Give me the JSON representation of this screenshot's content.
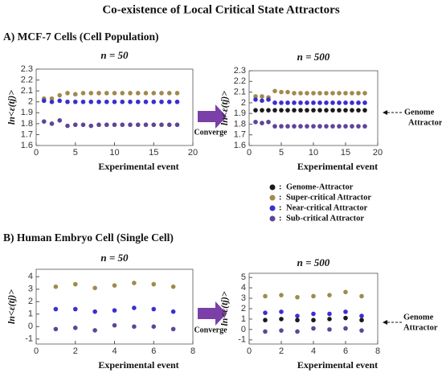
{
  "title": "Co-existence of Local Critical State Attractors",
  "sections": [
    {
      "heading": "A) MCF-7 Cells (Cell Population)",
      "arrow_label": "Converge",
      "annotation": [
        "Genome",
        "Attractor"
      ]
    },
    {
      "heading": "B) Human Embryo Cell (Single Cell)",
      "arrow_label": "Converge",
      "annotation": [
        "Genome",
        "Attractor"
      ]
    }
  ],
  "legend_separator": ":",
  "legend": [
    {
      "name": "Genome-Attractor",
      "color": "#1a1a1a"
    },
    {
      "name": "Super-critical Attractor",
      "color": "#a08a4c"
    },
    {
      "name": "Near-critical Attractor",
      "color": "#3a2fd0"
    },
    {
      "name": "Sub-critical Attractor",
      "color": "#5e4596"
    }
  ],
  "chart_data": [
    {
      "type": "scatter",
      "title": "n = 50",
      "xlabel": "Experimental event",
      "ylabel": "ln<ε(tj)>",
      "x": [
        1,
        2,
        3,
        4,
        5,
        6,
        7,
        8,
        9,
        10,
        11,
        12,
        13,
        14,
        15,
        16,
        17,
        18
      ],
      "xlim": [
        0,
        20
      ],
      "xticks": [
        0,
        5,
        10,
        15,
        20
      ],
      "ylim": [
        1.6,
        2.3
      ],
      "yticks": [
        1.6,
        1.7,
        1.8,
        1.9,
        2.0,
        2.1,
        2.2,
        2.3
      ],
      "series": [
        {
          "name": "Super-critical Attractor",
          "color": "#a08a4c",
          "values": [
            2.03,
            2.03,
            2.06,
            2.08,
            2.07,
            2.08,
            2.08,
            2.08,
            2.08,
            2.08,
            2.08,
            2.08,
            2.08,
            2.08,
            2.08,
            2.08,
            2.08,
            2.08
          ]
        },
        {
          "name": "Near-critical Attractor",
          "color": "#3a2fd0",
          "values": [
            2.01,
            2.0,
            2.01,
            2.0,
            2.0,
            2.0,
            2.0,
            2.0,
            2.0,
            2.0,
            2.0,
            2.0,
            2.0,
            2.0,
            2.0,
            2.0,
            2.0,
            2.0
          ]
        },
        {
          "name": "Sub-critical Attractor",
          "color": "#5e4596",
          "values": [
            1.82,
            1.8,
            1.83,
            1.78,
            1.79,
            1.79,
            1.78,
            1.79,
            1.79,
            1.79,
            1.79,
            1.79,
            1.79,
            1.79,
            1.79,
            1.79,
            1.79,
            1.79
          ]
        }
      ]
    },
    {
      "type": "scatter",
      "title": "n = 500",
      "xlabel": "Experimental event",
      "ylabel": "ln<ε(tj)>",
      "x": [
        1,
        2,
        3,
        4,
        5,
        6,
        7,
        8,
        9,
        10,
        11,
        12,
        13,
        14,
        15,
        16,
        17,
        18
      ],
      "xlim": [
        0,
        20
      ],
      "xticks": [
        0,
        5,
        10,
        15,
        20
      ],
      "ylim": [
        1.6,
        2.3
      ],
      "yticks": [
        1.6,
        1.7,
        1.8,
        1.9,
        2.0,
        2.1,
        2.2,
        2.3
      ],
      "series": [
        {
          "name": "Super-critical Attractor",
          "color": "#a08a4c",
          "values": [
            2.06,
            2.06,
            2.05,
            2.11,
            2.1,
            2.1,
            2.09,
            2.09,
            2.09,
            2.09,
            2.09,
            2.09,
            2.09,
            2.09,
            2.09,
            2.09,
            2.09,
            2.09
          ]
        },
        {
          "name": "Near-critical Attractor",
          "color": "#3a2fd0",
          "values": [
            2.03,
            2.02,
            2.03,
            2.0,
            2.0,
            2.0,
            2.0,
            2.0,
            2.0,
            2.0,
            2.0,
            2.0,
            2.0,
            2.0,
            2.0,
            2.0,
            2.0,
            2.0
          ]
        },
        {
          "name": "Genome-Attractor",
          "color": "#1a1a1a",
          "values": [
            1.93,
            1.93,
            1.93,
            1.93,
            1.93,
            1.93,
            1.93,
            1.93,
            1.93,
            1.93,
            1.93,
            1.93,
            1.93,
            1.93,
            1.93,
            1.93,
            1.93,
            1.93
          ]
        },
        {
          "name": "Sub-critical Attractor",
          "color": "#5e4596",
          "values": [
            1.82,
            1.81,
            1.82,
            1.78,
            1.78,
            1.78,
            1.78,
            1.78,
            1.78,
            1.78,
            1.78,
            1.78,
            1.78,
            1.78,
            1.78,
            1.78,
            1.78,
            1.78
          ]
        }
      ]
    },
    {
      "type": "scatter",
      "title": "n = 50",
      "xlabel": "Experimental event",
      "ylabel": "ln<ε(tj)>",
      "x": [
        1,
        2,
        3,
        4,
        5,
        6,
        7
      ],
      "xlim": [
        0,
        8
      ],
      "xticks": [
        0,
        2,
        4,
        6,
        8
      ],
      "ylim": [
        -1.4,
        4.6
      ],
      "yticks": [
        -1,
        0,
        1,
        2,
        3,
        4
      ],
      "series": [
        {
          "name": "Super-critical Attractor",
          "color": "#a08a4c",
          "values": [
            3.2,
            3.4,
            3.1,
            3.3,
            3.5,
            3.4,
            3.2
          ]
        },
        {
          "name": "Near-critical Attractor",
          "color": "#3a2fd0",
          "values": [
            1.4,
            1.4,
            1.2,
            1.3,
            1.5,
            1.4,
            1.2
          ]
        },
        {
          "name": "Sub-critical Attractor",
          "color": "#5e4596",
          "values": [
            -0.2,
            -0.1,
            -0.3,
            0.1,
            0.0,
            0.0,
            -0.2
          ]
        }
      ]
    },
    {
      "type": "scatter",
      "title": "n = 500",
      "xlabel": "Experimental event",
      "ylabel": "ln<ε(tj)>",
      "x": [
        1,
        2,
        3,
        4,
        5,
        6,
        7
      ],
      "xlim": [
        0,
        8
      ],
      "xticks": [
        0,
        2,
        4,
        6,
        8
      ],
      "ylim": [
        -1.4,
        5.4
      ],
      "yticks": [
        -1,
        0,
        1,
        2,
        3,
        4,
        5
      ],
      "series": [
        {
          "name": "Super-critical Attractor",
          "color": "#a08a4c",
          "values": [
            3.2,
            3.3,
            3.1,
            3.2,
            3.3,
            3.6,
            3.2
          ]
        },
        {
          "name": "Near-critical Attractor",
          "color": "#3a2fd0",
          "values": [
            1.6,
            1.7,
            1.3,
            1.5,
            1.5,
            1.7,
            1.3
          ]
        },
        {
          "name": "Genome-Attractor",
          "color": "#1a1a1a",
          "values": [
            0.9,
            1.0,
            0.9,
            0.9,
            1.0,
            1.1,
            0.9
          ]
        },
        {
          "name": "Sub-critical Attractor",
          "color": "#5e4596",
          "values": [
            -0.2,
            -0.1,
            -0.2,
            0.1,
            0.0,
            0.1,
            -0.1
          ]
        }
      ]
    }
  ]
}
